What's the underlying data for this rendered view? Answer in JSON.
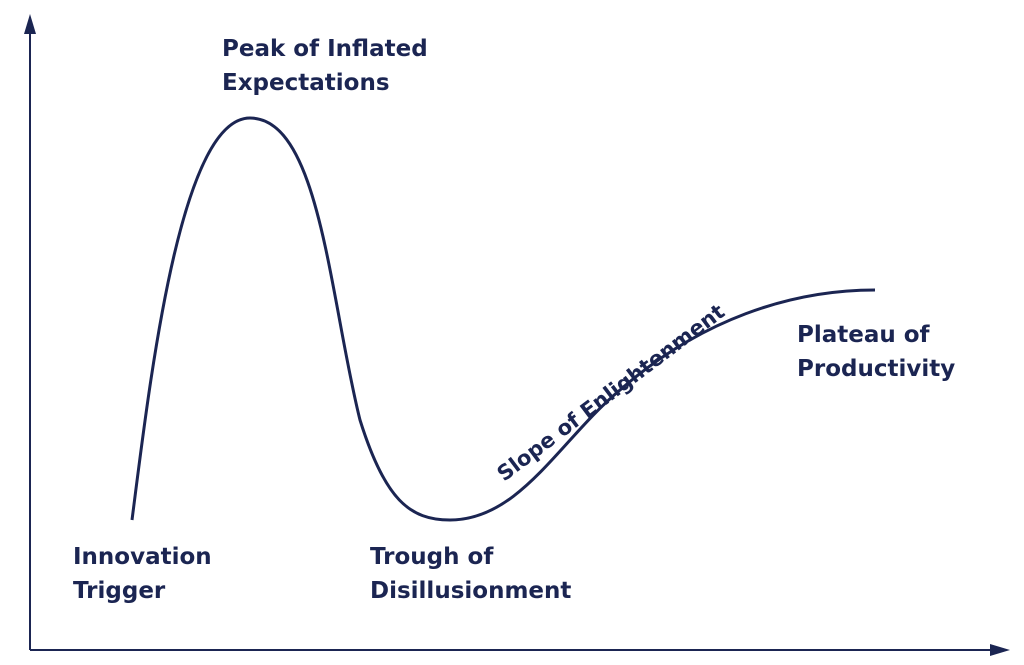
{
  "phases": [
    {
      "lines": [
        "Innovation",
        "Trigger"
      ]
    },
    {
      "lines": [
        "Peak of Inflated",
        "Expectations"
      ]
    },
    {
      "lines": [
        "Trough of",
        "Disillusionment"
      ]
    },
    {
      "lines": [
        "Slope of Enlightenment"
      ]
    },
    {
      "lines": [
        "Plateau of",
        "Productivity"
      ]
    }
  ]
}
